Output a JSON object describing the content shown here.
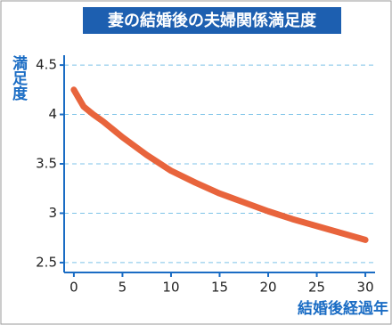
{
  "chart_data": {
    "type": "line",
    "title": "妻の結婚後の夫婦関係満足度",
    "x_label": "結婚後経過年",
    "y_label": "満足度",
    "x": [
      0,
      1,
      2,
      3,
      5,
      7.5,
      10,
      12.5,
      15,
      17.5,
      20,
      22.5,
      25,
      27.5,
      30
    ],
    "series": [
      {
        "color": "#e8643c",
        "values": [
          4.25,
          4.08,
          4.0,
          3.93,
          3.77,
          3.59,
          3.43,
          3.31,
          3.2,
          3.11,
          3.02,
          2.94,
          2.87,
          2.8,
          2.73
        ]
      }
    ],
    "xlim": [
      -1,
      31
    ],
    "ylim": [
      2.4,
      4.6
    ],
    "xticks": [
      0,
      5,
      10,
      15,
      20,
      25,
      30
    ],
    "yticks": [
      2.5,
      3,
      3.5,
      4,
      4.5
    ],
    "grid": true
  }
}
